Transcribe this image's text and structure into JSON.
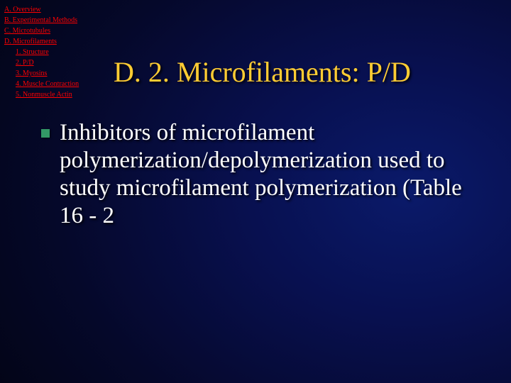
{
  "nav": {
    "items": [
      {
        "label": "A. Overview",
        "indent": false
      },
      {
        "label": "B. Experimental Methods",
        "indent": false
      },
      {
        "label": "C. Microtubules",
        "indent": false
      },
      {
        "label": "D. Microfilaments",
        "indent": false
      },
      {
        "label": "1. Structure",
        "indent": true
      },
      {
        "label": "2. P/D",
        "indent": true
      },
      {
        "label": "3. Myosins",
        "indent": true
      },
      {
        "label": "4. Muscle Contraction",
        "indent": true
      },
      {
        "label": "5. Nonmuscle Actin",
        "indent": true
      }
    ]
  },
  "title": "D. 2. Microfilaments: P/D",
  "body": {
    "text": "Inhibitors of microfilament polymerization/depolymerization used to study microfilament polymerization (Table 16 - 2"
  },
  "colors": {
    "nav_link": "#ff0000",
    "title": "#ffcc33",
    "body_text": "#ffffff",
    "bullet": "#339966",
    "bg_center": "#0a1a6a",
    "bg_edge": "#000000"
  },
  "typography": {
    "nav_fontsize": 10,
    "title_fontsize": 40,
    "body_fontsize": 33,
    "font_family": "Georgia, Times New Roman, serif"
  }
}
